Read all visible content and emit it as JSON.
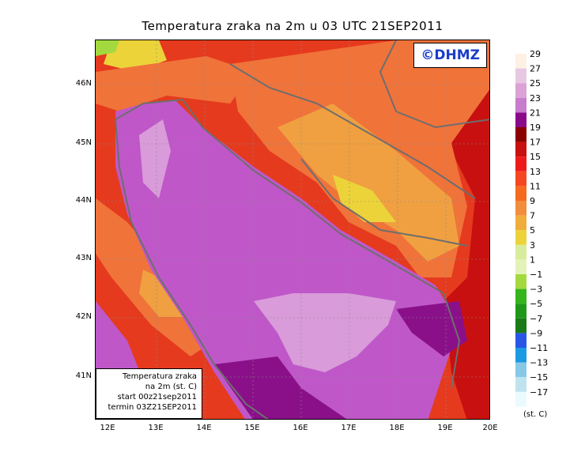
{
  "title": "Temperatura zraka na 2m u 03 UTC 21SEP2011",
  "copyright": "©DHMZ",
  "info_box": {
    "line1": "Temperatura zraka",
    "line2": "na 2m (st. C)",
    "line3": "start 00z21sep2011",
    "line4": "termin 03Z21SEP2011"
  },
  "lat_labels": [
    "46N",
    "45N",
    "44N",
    "43N",
    "42N",
    "41N"
  ],
  "lon_labels": [
    "12E",
    "13E",
    "14E",
    "15E",
    "16E",
    "17E",
    "18E",
    "19E",
    "20E"
  ],
  "legend": {
    "unit": "(st. C)",
    "labels": [
      "29",
      "27",
      "25",
      "23",
      "21",
      "19",
      "17",
      "15",
      "13",
      "11",
      "9",
      "7",
      "5",
      "3",
      "1",
      "−1",
      "−3",
      "−5",
      "−7",
      "−9",
      "−11",
      "−13",
      "−15",
      "−17"
    ],
    "colors": [
      "#fdf1e4",
      "#e6c8e2",
      "#dba2d6",
      "#c87ccc",
      "#8a0b8a",
      "#8b0000",
      "#c81010",
      "#ee1a1a",
      "#f5471f",
      "#f56a1e",
      "#f28d3c",
      "#f0ad3b",
      "#ecd33a",
      "#d8ec9b",
      "#e3f3b8",
      "#a3d93f",
      "#35b51b",
      "#1f981a",
      "#1a7a17",
      "#2a56e6",
      "#1b9ae3",
      "#86c8e6",
      "#bfe3ee",
      "#eafafd"
    ]
  },
  "colors": {
    "sea": "#bf57c9",
    "sea_light": "#d99bd9",
    "coastal_sea": "#8a1089",
    "land_base": "#e53a1e",
    "land_warm": "#f0733a",
    "land_cool": "#f0a040",
    "land_cold": "#ecd33a",
    "border": "#6e6e6e",
    "copyright_text": "#1a3cc8"
  }
}
